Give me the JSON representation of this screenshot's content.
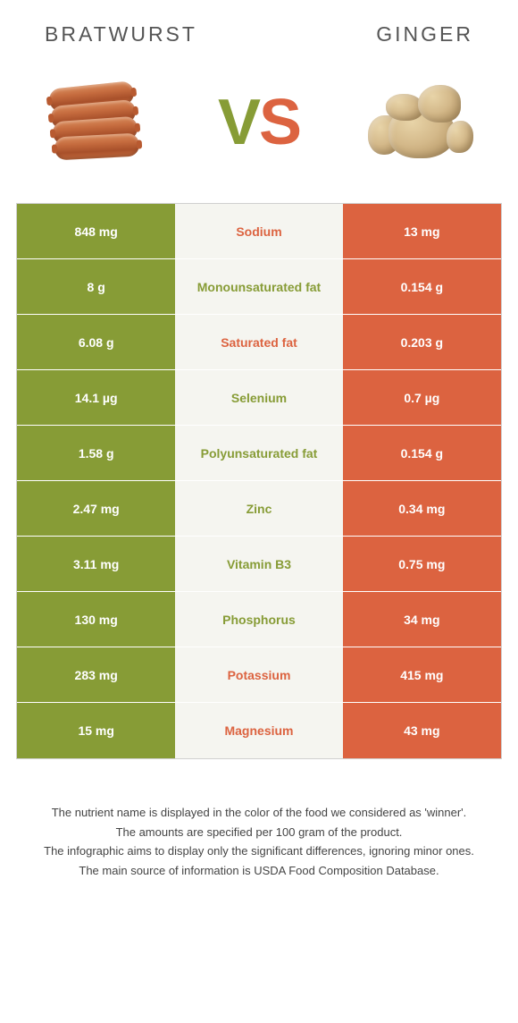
{
  "titles": {
    "left": "Bratwurst",
    "right": "Ginger"
  },
  "vs": {
    "v": "V",
    "s": "S"
  },
  "colors": {
    "green": "#879c36",
    "orange": "#dc6340",
    "mid_bg": "#f5f5f0"
  },
  "rows": [
    {
      "left": "848 mg",
      "mid": "Sodium",
      "right": "13 mg",
      "left_color": "#879c36",
      "mid_color": "#dc6340",
      "right_color": "#dc6340"
    },
    {
      "left": "8 g",
      "mid": "Monounsaturated fat",
      "right": "0.154 g",
      "left_color": "#879c36",
      "mid_color": "#879c36",
      "right_color": "#dc6340"
    },
    {
      "left": "6.08 g",
      "mid": "Saturated fat",
      "right": "0.203 g",
      "left_color": "#879c36",
      "mid_color": "#dc6340",
      "right_color": "#dc6340"
    },
    {
      "left": "14.1 µg",
      "mid": "Selenium",
      "right": "0.7 µg",
      "left_color": "#879c36",
      "mid_color": "#879c36",
      "right_color": "#dc6340"
    },
    {
      "left": "1.58 g",
      "mid": "Polyunsaturated fat",
      "right": "0.154 g",
      "left_color": "#879c36",
      "mid_color": "#879c36",
      "right_color": "#dc6340"
    },
    {
      "left": "2.47 mg",
      "mid": "Zinc",
      "right": "0.34 mg",
      "left_color": "#879c36",
      "mid_color": "#879c36",
      "right_color": "#dc6340"
    },
    {
      "left": "3.11 mg",
      "mid": "Vitamin B3",
      "right": "0.75 mg",
      "left_color": "#879c36",
      "mid_color": "#879c36",
      "right_color": "#dc6340"
    },
    {
      "left": "130 mg",
      "mid": "Phosphorus",
      "right": "34 mg",
      "left_color": "#879c36",
      "mid_color": "#879c36",
      "right_color": "#dc6340"
    },
    {
      "left": "283 mg",
      "mid": "Potassium",
      "right": "415 mg",
      "left_color": "#879c36",
      "mid_color": "#dc6340",
      "right_color": "#dc6340"
    },
    {
      "left": "15 mg",
      "mid": "Magnesium",
      "right": "43 mg",
      "left_color": "#879c36",
      "mid_color": "#dc6340",
      "right_color": "#dc6340"
    }
  ],
  "footer": [
    "The nutrient name is displayed in the color of the food we considered as 'winner'.",
    "The amounts are specified per 100 gram of the product.",
    "The infographic aims to display only the significant differences, ignoring minor ones.",
    "The main source of information is USDA Food Composition Database."
  ]
}
